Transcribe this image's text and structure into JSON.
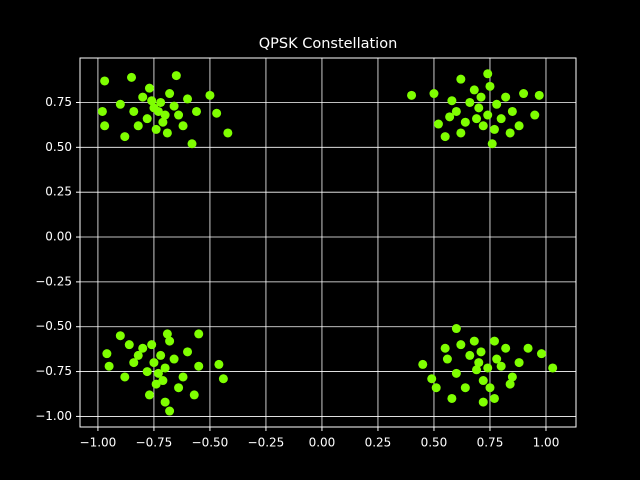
{
  "chart_data": {
    "type": "scatter",
    "title": "QPSK Constellation",
    "color": "#7fff00",
    "grid": true,
    "xlim": [
      -1.08,
      1.134
    ],
    "ylim": [
      -1.059,
      0.998
    ],
    "xticks": [
      {
        "value": -1,
        "label": "−1.00"
      },
      {
        "value": -0.75,
        "label": "−0.75"
      },
      {
        "value": -0.5,
        "label": "−0.50"
      },
      {
        "value": -0.25,
        "label": "−0.25"
      },
      {
        "value": 0,
        "label": "0.00"
      },
      {
        "value": 0.25,
        "label": "0.25"
      },
      {
        "value": 0.5,
        "label": "0.50"
      },
      {
        "value": 0.75,
        "label": "0.75"
      },
      {
        "value": 1,
        "label": "1.00"
      }
    ],
    "yticks": [
      {
        "value": -1,
        "label": "−1.00"
      },
      {
        "value": -0.75,
        "label": "−0.75"
      },
      {
        "value": -0.5,
        "label": "−0.50"
      },
      {
        "value": -0.25,
        "label": "−0.25"
      },
      {
        "value": 0,
        "label": "0.00"
      },
      {
        "value": 0.25,
        "label": "0.25"
      },
      {
        "value": 0.5,
        "label": "0.50"
      },
      {
        "value": 0.75,
        "label": "0.75"
      }
    ],
    "x": [
      -0.98,
      -0.97,
      -0.85,
      -0.65,
      -0.97,
      -0.88,
      -0.47,
      -0.42,
      -0.5,
      -0.58,
      -0.75,
      -0.7,
      -0.72,
      -0.78,
      -0.66,
      -0.8,
      -0.62,
      -0.74,
      -0.68,
      -0.84,
      -0.6,
      -0.77,
      -0.71,
      -0.9,
      -0.56,
      -0.64,
      -0.82,
      -0.69,
      -0.76,
      -0.73,
      0.4,
      0.52,
      0.55,
      0.74,
      0.97,
      0.95,
      0.76,
      0.88,
      0.5,
      0.62,
      0.7,
      0.74,
      0.66,
      0.78,
      0.72,
      0.82,
      0.6,
      0.68,
      0.85,
      0.64,
      0.77,
      0.58,
      0.8,
      0.71,
      0.9,
      0.62,
      0.75,
      0.69,
      0.57,
      0.84,
      -0.96,
      -0.95,
      -0.9,
      -0.44,
      -0.46,
      -0.55,
      -0.68,
      -0.7,
      -0.57,
      -0.77,
      -0.75,
      -0.7,
      -0.72,
      -0.78,
      -0.66,
      -0.8,
      -0.62,
      -0.74,
      -0.68,
      -0.84,
      -0.6,
      -0.76,
      -0.71,
      -0.88,
      -0.55,
      -0.64,
      -0.82,
      -0.69,
      -0.73,
      -0.86,
      0.45,
      0.49,
      0.51,
      0.58,
      0.72,
      0.77,
      1.03,
      0.98,
      0.6,
      0.92,
      0.7,
      0.74,
      0.66,
      0.78,
      0.72,
      0.82,
      0.6,
      0.68,
      0.85,
      0.64,
      0.77,
      0.56,
      0.8,
      0.71,
      0.88,
      0.62,
      0.75,
      0.69,
      0.55,
      0.84
    ],
    "values": [
      0.7,
      0.87,
      0.89,
      0.9,
      0.62,
      0.56,
      0.69,
      0.58,
      0.79,
      0.52,
      0.72,
      0.68,
      0.75,
      0.66,
      0.73,
      0.78,
      0.62,
      0.6,
      0.8,
      0.7,
      0.77,
      0.83,
      0.64,
      0.74,
      0.7,
      0.68,
      0.62,
      0.58,
      0.76,
      0.7,
      0.79,
      0.63,
      0.56,
      0.91,
      0.79,
      0.68,
      0.52,
      0.62,
      0.8,
      0.88,
      0.72,
      0.68,
      0.75,
      0.74,
      0.62,
      0.78,
      0.7,
      0.82,
      0.7,
      0.64,
      0.6,
      0.76,
      0.66,
      0.78,
      0.8,
      0.58,
      0.84,
      0.66,
      0.67,
      0.58,
      -0.65,
      -0.72,
      -0.55,
      -0.79,
      -0.71,
      -0.54,
      -0.97,
      -0.92,
      -0.88,
      -0.88,
      -0.7,
      -0.73,
      -0.66,
      -0.75,
      -0.68,
      -0.62,
      -0.78,
      -0.82,
      -0.58,
      -0.7,
      -0.64,
      -0.6,
      -0.8,
      -0.78,
      -0.72,
      -0.84,
      -0.66,
      -0.54,
      -0.76,
      -0.6,
      -0.71,
      -0.79,
      -0.84,
      -0.9,
      -0.92,
      -0.9,
      -0.73,
      -0.65,
      -0.51,
      -0.62,
      -0.7,
      -0.73,
      -0.66,
      -0.68,
      -0.8,
      -0.62,
      -0.76,
      -0.58,
      -0.78,
      -0.84,
      -0.58,
      -0.68,
      -0.72,
      -0.64,
      -0.7,
      -0.6,
      -0.84,
      -0.74,
      -0.62,
      -0.82
    ]
  }
}
